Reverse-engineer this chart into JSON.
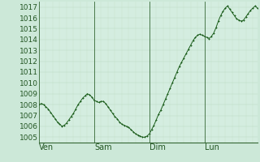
{
  "plot_bg_color": "#d4ede0",
  "outer_bg_color": "#cce8d8",
  "grid_color_major": "#b8d8c0",
  "grid_color_minor": "#c8e0cc",
  "line_color": "#1a5c1a",
  "marker_color": "#1a5c1a",
  "vline_color": "#336633",
  "x_ticks_labels": [
    "Ven",
    "Sam",
    "Dim",
    "Lun"
  ],
  "x_ticks_pos": [
    0,
    24,
    48,
    72
  ],
  "ylim": [
    1004.5,
    1017.5
  ],
  "yticks": [
    1005,
    1006,
    1007,
    1008,
    1009,
    1010,
    1011,
    1012,
    1013,
    1014,
    1015,
    1016,
    1017
  ],
  "xlim": [
    0,
    95
  ],
  "total_points": 96,
  "pressure_data": [
    1008.0,
    1008.1,
    1008.0,
    1007.8,
    1007.6,
    1007.3,
    1007.0,
    1006.7,
    1006.4,
    1006.2,
    1006.0,
    1006.1,
    1006.3,
    1006.6,
    1006.9,
    1007.2,
    1007.6,
    1008.0,
    1008.3,
    1008.6,
    1008.8,
    1009.0,
    1008.9,
    1008.7,
    1008.4,
    1008.3,
    1008.2,
    1008.3,
    1008.3,
    1008.1,
    1007.8,
    1007.5,
    1007.2,
    1006.9,
    1006.7,
    1006.4,
    1006.2,
    1006.1,
    1006.0,
    1005.9,
    1005.7,
    1005.5,
    1005.3,
    1005.2,
    1005.1,
    1005.0,
    1005.0,
    1005.1,
    1005.3,
    1005.7,
    1006.1,
    1006.6,
    1007.1,
    1007.5,
    1008.0,
    1008.5,
    1009.0,
    1009.5,
    1010.0,
    1010.5,
    1011.0,
    1011.5,
    1011.9,
    1012.3,
    1012.7,
    1013.1,
    1013.5,
    1013.9,
    1014.2,
    1014.4,
    1014.5,
    1014.4,
    1014.3,
    1014.2,
    1014.1,
    1014.3,
    1014.6,
    1015.1,
    1015.7,
    1016.2,
    1016.6,
    1016.9,
    1017.1,
    1016.8,
    1016.5,
    1016.2,
    1015.9,
    1015.8,
    1015.7,
    1015.8,
    1016.1,
    1016.4,
    1016.7,
    1016.9,
    1017.1,
    1016.9
  ],
  "tick_label_fontsize": 7,
  "ytick_fontsize": 6.5
}
